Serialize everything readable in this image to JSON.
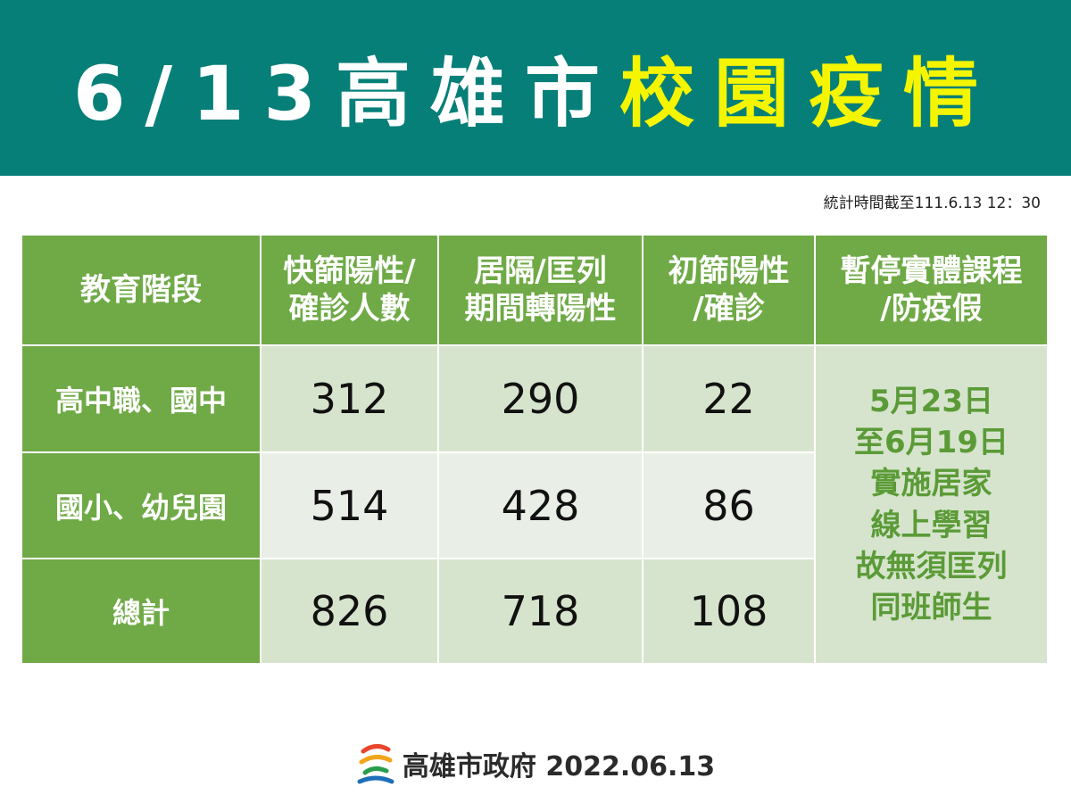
{
  "header": {
    "title_white": "6/13高雄市",
    "title_yellow": "校園疫情"
  },
  "timestamp": "統計時間截至111.6.13 12：30",
  "table": {
    "columns": [
      [
        "教育階段"
      ],
      [
        "快篩陽性/",
        "確診人數"
      ],
      [
        "居隔/匡列",
        "期間轉陽性"
      ],
      [
        "初篩陽性",
        "/確診"
      ],
      [
        "暫停實體課程",
        "/防疫假"
      ]
    ],
    "rows": [
      [
        "高中職、國中",
        312,
        290,
        22
      ],
      [
        "國小、幼兒園",
        514,
        428,
        86
      ],
      [
        "總計",
        826,
        718,
        108
      ]
    ],
    "note": [
      "5月23日",
      "至6月19日",
      "實施居家",
      "線上學習",
      "故無須匡列",
      "同班師生"
    ]
  },
  "footer": "高雄市政府 2022.06.13"
}
